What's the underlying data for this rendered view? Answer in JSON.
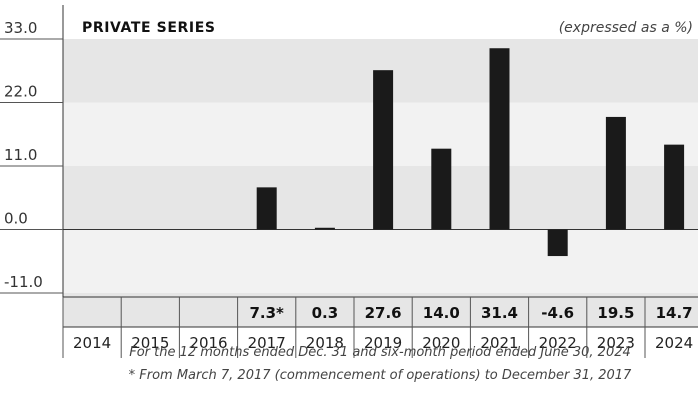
{
  "chart_data": {
    "type": "bar",
    "title": "PRIVATE SERIES",
    "subtitle": "(expressed as a %)",
    "categories": [
      "2014",
      "2015",
      "2016",
      "2017",
      "2018",
      "2019",
      "2020",
      "2021",
      "2022",
      "2023",
      "2024"
    ],
    "values": [
      null,
      null,
      null,
      7.3,
      0.3,
      27.6,
      14.0,
      31.4,
      -4.6,
      19.5,
      14.7
    ],
    "value_labels": [
      "",
      "",
      "",
      "7.3*",
      "0.3",
      "27.6",
      "14.0",
      "31.4",
      "-4.6",
      "19.5",
      "14.7"
    ],
    "yticks": [
      33.0,
      22.0,
      11.0,
      0.0,
      -11.0
    ],
    "ytick_labels": [
      "33.0",
      "22.0",
      "11.0",
      "0.0",
      "-11.0"
    ],
    "ylim": [
      -11.0,
      33.0
    ],
    "bar_color": "#1a1a1a",
    "band_colors": [
      "#e6e6e6",
      "#f2f2f2"
    ],
    "footnotes": [
      "For the 12 months ended Dec. 31 and six-month period ended June 30, 2024",
      "* From March 7, 2017 (commencement of operations) to December 31, 2017"
    ]
  }
}
